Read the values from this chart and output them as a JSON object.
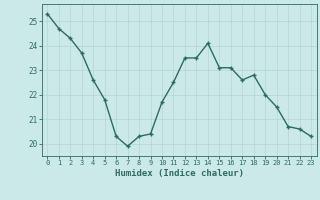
{
  "x": [
    0,
    1,
    2,
    3,
    4,
    5,
    6,
    7,
    8,
    9,
    10,
    11,
    12,
    13,
    14,
    15,
    16,
    17,
    18,
    19,
    20,
    21,
    22,
    23
  ],
  "y": [
    25.3,
    24.7,
    24.3,
    23.7,
    22.6,
    21.8,
    20.3,
    19.9,
    20.3,
    20.4,
    21.7,
    22.5,
    23.5,
    23.5,
    24.1,
    23.1,
    23.1,
    22.6,
    22.8,
    22.0,
    21.5,
    20.7,
    20.6,
    20.3
  ],
  "xlabel": "Humidex (Indice chaleur)",
  "xlim": [
    -0.5,
    23.5
  ],
  "ylim": [
    19.5,
    25.7
  ],
  "yticks": [
    20,
    21,
    22,
    23,
    24,
    25
  ],
  "xticks": [
    0,
    1,
    2,
    3,
    4,
    5,
    6,
    7,
    8,
    9,
    10,
    11,
    12,
    13,
    14,
    15,
    16,
    17,
    18,
    19,
    20,
    21,
    22,
    23
  ],
  "line_color": "#2e6b5e",
  "marker": "+",
  "bg_color": "#cce9e9",
  "grid_color": "#b8d8d8",
  "axis_color": "#2e6b5e"
}
